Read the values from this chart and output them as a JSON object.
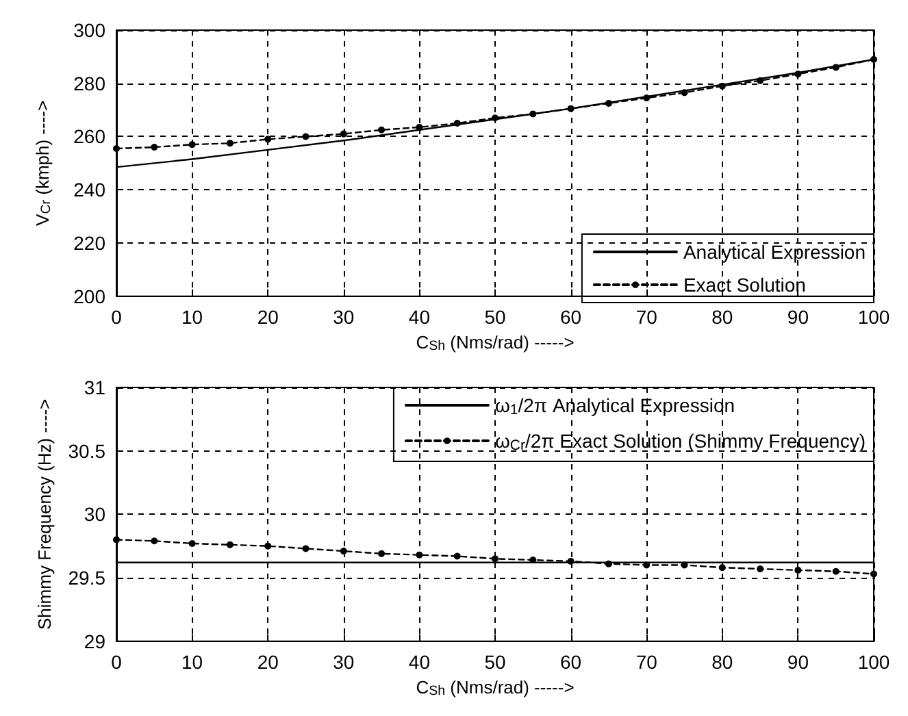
{
  "chart_data": [
    {
      "type": "line",
      "xlabel": "C$_{Sh}$ (Nms/rad) ----->",
      "ylabel": "V$_{Cr}$ (kmph) ---->",
      "x": [
        0,
        5,
        10,
        15,
        20,
        25,
        30,
        35,
        40,
        45,
        50,
        55,
        60,
        65,
        70,
        75,
        80,
        85,
        90,
        95,
        100
      ],
      "xlim": [
        0,
        100
      ],
      "xticks": [
        0,
        10,
        20,
        30,
        40,
        50,
        60,
        70,
        80,
        90,
        100
      ],
      "ylim": [
        200,
        300
      ],
      "yticks": [
        200,
        220,
        240,
        260,
        280,
        300
      ],
      "grid": true,
      "legend": "bottom right",
      "series": [
        {
          "name": "Analytical Expression",
          "color": "#000000",
          "marker": "none",
          "line_style": "solid",
          "x": [
            0,
            10,
            20,
            30,
            40,
            50,
            60,
            70,
            80,
            90,
            100
          ],
          "values": [
            248.5,
            251.5,
            255,
            258.5,
            262.5,
            266.5,
            270.5,
            275,
            279.5,
            284,
            289
          ]
        },
        {
          "name": "Exact Solution",
          "color": "#000000",
          "marker": "circle",
          "line_style": "dashed",
          "values": [
            255.5,
            256,
            257,
            257.5,
            259,
            260,
            261,
            262.5,
            263.5,
            265,
            267,
            268.5,
            270.5,
            272.5,
            274.5,
            276.5,
            279,
            281,
            283.5,
            286,
            289
          ]
        }
      ]
    },
    {
      "type": "line",
      "xlabel": "C$_{Sh}$ (Nms/rad) ----->",
      "ylabel": "Shimmy Frequency (Hz) ---->",
      "x": [
        0,
        5,
        10,
        15,
        20,
        25,
        30,
        35,
        40,
        45,
        50,
        55,
        60,
        65,
        70,
        75,
        80,
        85,
        90,
        95,
        100
      ],
      "xlim": [
        0,
        100
      ],
      "xticks": [
        0,
        10,
        20,
        30,
        40,
        50,
        60,
        70,
        80,
        90,
        100
      ],
      "ylim": [
        29,
        31
      ],
      "yticks": [
        29,
        29.5,
        30,
        30.5,
        31
      ],
      "grid": true,
      "legend": "top right",
      "series": [
        {
          "name": "ω$_{1}$/2π Analytical Expression",
          "color": "#000000",
          "marker": "none",
          "line_style": "solid",
          "x": [
            0,
            100
          ],
          "values": [
            29.62,
            29.62
          ]
        },
        {
          "name": "ω$_{Cr}$/2π Exact Solution (Shimmy Frequency)",
          "color": "#000000",
          "marker": "circle",
          "line_style": "dashed",
          "values": [
            29.8,
            29.79,
            29.77,
            29.76,
            29.75,
            29.73,
            29.71,
            29.69,
            29.68,
            29.67,
            29.65,
            29.64,
            29.63,
            29.61,
            29.6,
            29.6,
            29.58,
            29.57,
            29.56,
            29.55,
            29.53
          ]
        }
      ]
    }
  ]
}
